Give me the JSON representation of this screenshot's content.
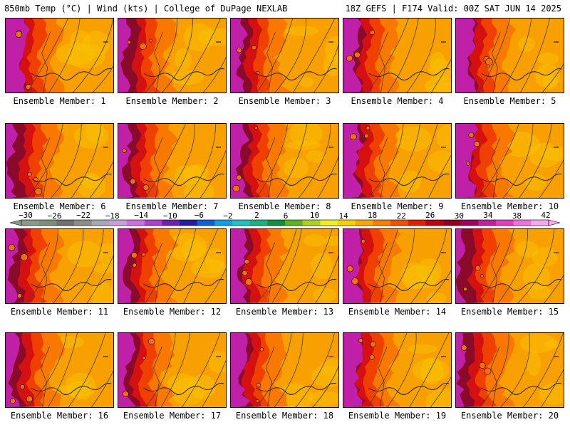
{
  "header": {
    "left_title": "850mb Temp (°C) | Wind (kts) | College of DuPage NEXLAB",
    "right_title": "18Z GEFS | F174 Valid: 00Z SAT JUN 14 2025"
  },
  "panels": [
    {
      "label": "Ensemble Member: 1"
    },
    {
      "label": "Ensemble Member: 2"
    },
    {
      "label": "Ensemble Member: 3"
    },
    {
      "label": "Ensemble Member: 4"
    },
    {
      "label": "Ensemble Member: 5"
    },
    {
      "label": "Ensemble Member: 6"
    },
    {
      "label": "Ensemble Member: 7"
    },
    {
      "label": "Ensemble Member: 8"
    },
    {
      "label": "Ensemble Member: 9"
    },
    {
      "label": "Ensemble Member: 10"
    },
    {
      "label": "Ensemble Member: 11"
    },
    {
      "label": "Ensemble Member: 12"
    },
    {
      "label": "Ensemble Member: 13"
    },
    {
      "label": "Ensemble Member: 14"
    },
    {
      "label": "Ensemble Member: 15"
    },
    {
      "label": "Ensemble Member: 16"
    },
    {
      "label": "Ensemble Member: 17"
    },
    {
      "label": "Ensemble Member: 18"
    },
    {
      "label": "Ensemble Member: 19"
    },
    {
      "label": "Ensemble Member: 20"
    }
  ],
  "colorbar": {
    "tick_labels": [
      "−30",
      "−26",
      "−22",
      "−18",
      "−14",
      "−10",
      "−6",
      "−2",
      "2",
      "6",
      "10",
      "14",
      "18",
      "22",
      "26",
      "30",
      "34",
      "38",
      "42"
    ],
    "colors": [
      "#8a9a8a",
      "#7d8c7d",
      "#6f6f6f",
      "#8c8c8c",
      "#a7a7b5",
      "#c8a0d8",
      "#d070e0",
      "#b040d0",
      "#7020b0",
      "#2020a0",
      "#1060d0",
      "#10a0e0",
      "#20c0c0",
      "#20b080",
      "#109040",
      "#60b020",
      "#b0d020",
      "#f0f020",
      "#f8d000",
      "#f8a800",
      "#f88000",
      "#f05000",
      "#e02000",
      "#c00010",
      "#900020",
      "#a00060",
      "#c020a0",
      "#e040c0",
      "#f070e0",
      "#f8a8f0"
    ]
  },
  "palette": {
    "magenta": "#c020a8",
    "deep_red": "#8a0a2a",
    "red": "#d41010",
    "red_orange": "#f04000",
    "orange": "#f87800",
    "light_orange": "#f8a000",
    "yellow_orange": "#f8c000",
    "contour": "#404040"
  }
}
